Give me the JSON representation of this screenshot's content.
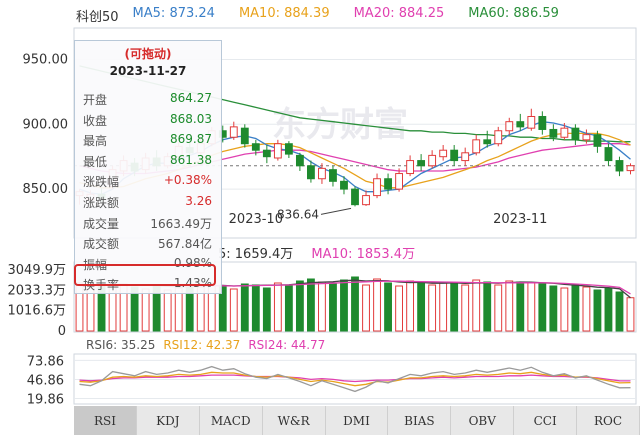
{
  "title": "科创50",
  "ma_legend": [
    {
      "label": "MA5: 873.24",
      "color": "#3a7fc8"
    },
    {
      "label": "MA10: 884.39",
      "color": "#e8a21c"
    },
    {
      "label": "MA20: 884.25",
      "color": "#e040b0"
    },
    {
      "label": "MA60: 886.59",
      "color": "#2a8f3a"
    }
  ],
  "price_axis": [
    "950.00",
    "900.00",
    "850.00"
  ],
  "date_labels": [
    "2023-10",
    "2023-11"
  ],
  "low_annotation": "836.64",
  "watermark": "东方财富",
  "volume_legend": {
    "ma5": "5: 1659.4万",
    "ma10": "MA10: 1853.4万"
  },
  "volume_axis": [
    "3049.9万",
    "2033.3万",
    "1016.6万",
    "0"
  ],
  "rsi_legend": [
    {
      "label": "RSI6: 35.25",
      "color": "#555555"
    },
    {
      "label": "RSI12: 42.37",
      "color": "#e8a21c"
    },
    {
      "label": "RSI24: 44.77",
      "color": "#e040b0"
    }
  ],
  "rsi_axis": [
    "73.86",
    "46.86",
    "19.86"
  ],
  "tabs": [
    "RSI",
    "KDJ",
    "MACD",
    "W&R",
    "DMI",
    "BIAS",
    "OBV",
    "CCI",
    "ROC"
  ],
  "tooltip": {
    "header": "(可拖动)",
    "date": "2023-11-27",
    "rows": [
      {
        "key": "开盘",
        "value": "864.27",
        "color": "#1a8a2a"
      },
      {
        "key": "收盘",
        "value": "868.03",
        "color": "#1a8a2a"
      },
      {
        "key": "最高",
        "value": "869.87",
        "color": "#1a8a2a"
      },
      {
        "key": "最低",
        "value": "861.38",
        "color": "#1a8a2a"
      },
      {
        "key": "涨跌幅",
        "value": "+0.38%",
        "color": "#d62b2b"
      },
      {
        "key": "涨跌额",
        "value": "3.26",
        "color": "#d62b2b"
      },
      {
        "key": "成交量",
        "value": "1663.49万",
        "color": "#555555"
      },
      {
        "key": "成交额",
        "value": "567.84亿",
        "color": "#555555"
      },
      {
        "key": "振幅",
        "value": "0.98%",
        "color": "#555555"
      },
      {
        "key": "换手率",
        "value": "1.43%",
        "color": "#555555"
      }
    ]
  },
  "chart_data": {
    "type": "candlestick",
    "price_ylim": [
      820,
      965
    ],
    "price_ticks": [
      950,
      900,
      850
    ],
    "candles": [
      [
        845,
        848,
        850,
        838
      ],
      [
        842,
        846,
        849,
        840
      ],
      [
        846,
        843,
        851,
        840
      ],
      [
        852,
        865,
        868,
        850
      ],
      [
        864,
        872,
        876,
        860
      ],
      [
        870,
        864,
        874,
        860
      ],
      [
        865,
        874,
        878,
        862
      ],
      [
        874,
        868,
        880,
        864
      ],
      [
        868,
        875,
        878,
        866
      ],
      [
        875,
        883,
        886,
        872
      ],
      [
        882,
        878,
        888,
        876
      ],
      [
        878,
        885,
        890,
        876
      ],
      [
        885,
        895,
        898,
        883
      ],
      [
        895,
        890,
        899,
        886
      ],
      [
        890,
        898,
        902,
        888
      ],
      [
        897,
        885,
        900,
        882
      ],
      [
        885,
        880,
        888,
        876
      ],
      [
        880,
        875,
        884,
        870
      ],
      [
        874,
        885,
        888,
        872
      ],
      [
        885,
        877,
        887,
        874
      ],
      [
        876,
        868,
        878,
        864
      ],
      [
        868,
        858,
        872,
        855
      ],
      [
        858,
        866,
        870,
        854
      ],
      [
        865,
        856,
        868,
        852
      ],
      [
        856,
        850,
        860,
        846
      ],
      [
        850,
        838,
        852,
        836.64
      ],
      [
        838,
        845,
        849,
        837
      ],
      [
        845,
        858,
        862,
        843
      ],
      [
        858,
        850,
        862,
        846
      ],
      [
        850,
        862,
        866,
        848
      ],
      [
        862,
        872,
        876,
        860
      ],
      [
        872,
        868,
        877,
        864
      ],
      [
        868,
        876,
        880,
        866
      ],
      [
        875,
        880,
        884,
        872
      ],
      [
        880,
        872,
        884,
        868
      ],
      [
        872,
        878,
        882,
        868
      ],
      [
        878,
        888,
        892,
        876
      ],
      [
        888,
        885,
        895,
        882
      ],
      [
        885,
        895,
        898,
        883
      ],
      [
        895,
        902,
        905,
        892
      ],
      [
        902,
        898,
        908,
        895
      ],
      [
        897,
        906,
        912,
        895
      ],
      [
        906,
        896,
        910,
        892
      ],
      [
        896,
        890,
        900,
        887
      ],
      [
        890,
        897,
        901,
        888
      ],
      [
        897,
        888,
        900,
        884
      ],
      [
        888,
        892,
        896,
        885
      ],
      [
        892,
        883,
        895,
        878
      ],
      [
        882,
        872,
        885,
        868
      ],
      [
        872,
        864,
        875,
        860
      ],
      [
        864.27,
        868.03,
        869.87,
        861.38
      ]
    ],
    "ma5": [
      850,
      847,
      846,
      850,
      858,
      863,
      868,
      870,
      870,
      873,
      876,
      879,
      884,
      888,
      890,
      891,
      889,
      884,
      881,
      880,
      877,
      871,
      866,
      863,
      859,
      852,
      848,
      848,
      849,
      850,
      856,
      862,
      866,
      870,
      874,
      875,
      878,
      883,
      886,
      892,
      895,
      899,
      902,
      901,
      899,
      896,
      893,
      891,
      886,
      880,
      873
    ],
    "ma10": [
      855,
      853,
      851,
      851,
      852,
      855,
      858,
      860,
      862,
      865,
      869,
      872,
      876,
      879,
      881,
      883,
      884,
      885,
      885,
      884,
      882,
      878,
      874,
      870,
      866,
      861,
      856,
      854,
      851,
      851,
      853,
      855,
      857,
      859,
      862,
      865,
      868,
      872,
      875,
      879,
      883,
      887,
      890,
      892,
      893,
      893,
      893,
      893,
      891,
      888,
      884
    ],
    "ma20": [
      868,
      866,
      864,
      863,
      862,
      862,
      862,
      863,
      864,
      865,
      867,
      869,
      871,
      873,
      875,
      877,
      878,
      879,
      880,
      880,
      880,
      879,
      877,
      875,
      873,
      871,
      869,
      867,
      865,
      864,
      864,
      864,
      864,
      864,
      865,
      866,
      867,
      869,
      871,
      874,
      876,
      878,
      880,
      881,
      882,
      883,
      884,
      885,
      885,
      885,
      884
    ],
    "ma60": [
      945,
      943,
      941,
      939,
      937,
      935,
      933,
      931,
      929,
      927,
      925,
      923,
      921,
      919,
      917,
      915,
      913,
      911,
      909,
      907,
      905,
      904,
      903,
      902,
      901,
      900,
      899,
      898,
      897,
      896,
      895,
      895,
      894,
      894,
      893,
      893,
      892,
      892,
      891,
      891,
      890,
      890,
      889,
      889,
      888,
      888,
      887,
      887,
      887,
      886.5,
      886.59
    ],
    "volume_ylim": [
      0,
      3300
    ],
    "volume_ticks": [
      3049.9,
      2033.3,
      1016.6,
      0
    ],
    "volume": [
      2400,
      2150,
      2300,
      2500,
      2350,
      2200,
      2100,
      2250,
      2050,
      2150,
      2300,
      2200,
      2400,
      2250,
      2100,
      2350,
      2300,
      2150,
      2400,
      2250,
      2500,
      2600,
      2450,
      2350,
      2550,
      2700,
      2300,
      2600,
      2400,
      2250,
      2500,
      2400,
      2300,
      2450,
      2350,
      2300,
      2550,
      2450,
      2300,
      2500,
      2450,
      2400,
      2350,
      2250,
      2150,
      2300,
      2200,
      2050,
      2150,
      1950,
      1663.49
    ],
    "volume_ma5": [
      2300,
      2280,
      2290,
      2320,
      2330,
      2300,
      2290,
      2270,
      2230,
      2210,
      2220,
      2230,
      2260,
      2280,
      2250,
      2270,
      2280,
      2290,
      2300,
      2310,
      2360,
      2420,
      2440,
      2460,
      2520,
      2540,
      2500,
      2520,
      2510,
      2450,
      2420,
      2430,
      2390,
      2390,
      2410,
      2380,
      2400,
      2410,
      2390,
      2420,
      2450,
      2440,
      2410,
      2390,
      2330,
      2290,
      2250,
      2190,
      2170,
      2110,
      1659.4
    ],
    "volume_ma10": [
      2250,
      2260,
      2270,
      2280,
      2290,
      2290,
      2290,
      2290,
      2280,
      2270,
      2260,
      2250,
      2260,
      2260,
      2250,
      2260,
      2270,
      2280,
      2290,
      2300,
      2320,
      2350,
      2370,
      2390,
      2420,
      2440,
      2460,
      2480,
      2490,
      2490,
      2480,
      2470,
      2460,
      2450,
      2440,
      2430,
      2420,
      2420,
      2410,
      2410,
      2410,
      2410,
      2410,
      2400,
      2380,
      2350,
      2320,
      2280,
      2240,
      2180,
      1853.4
    ],
    "rsi_ylim": [
      15,
      80
    ],
    "rsi_ticks": [
      73.86,
      46.86,
      19.86
    ],
    "rsi6": [
      40,
      38,
      45,
      58,
      55,
      52,
      58,
      54,
      56,
      60,
      57,
      60,
      65,
      60,
      62,
      55,
      50,
      48,
      54,
      49,
      44,
      38,
      45,
      40,
      35,
      30,
      36,
      45,
      42,
      48,
      54,
      52,
      56,
      58,
      54,
      56,
      60,
      57,
      60,
      63,
      60,
      64,
      57,
      52,
      55,
      49,
      52,
      46,
      40,
      35,
      35.25
    ],
    "rsi12": [
      44,
      43,
      45,
      50,
      51,
      50,
      52,
      51,
      52,
      54,
      53,
      54,
      57,
      56,
      56,
      53,
      51,
      50,
      52,
      50,
      47,
      44,
      46,
      44,
      41,
      38,
      40,
      44,
      43,
      46,
      49,
      49,
      51,
      52,
      51,
      52,
      54,
      53,
      54,
      56,
      55,
      57,
      54,
      52,
      53,
      50,
      51,
      48,
      45,
      42,
      42.37
    ],
    "rsi24": [
      46,
      45,
      46,
      48,
      49,
      49,
      50,
      50,
      50,
      51,
      51,
      52,
      53,
      53,
      53,
      52,
      51,
      51,
      51,
      50,
      49,
      47,
      48,
      47,
      45,
      44,
      45,
      46,
      46,
      47,
      48,
      48,
      49,
      50,
      49,
      50,
      51,
      51,
      51,
      52,
      52,
      53,
      52,
      51,
      51,
      50,
      50,
      49,
      47,
      45,
      44.77
    ]
  }
}
